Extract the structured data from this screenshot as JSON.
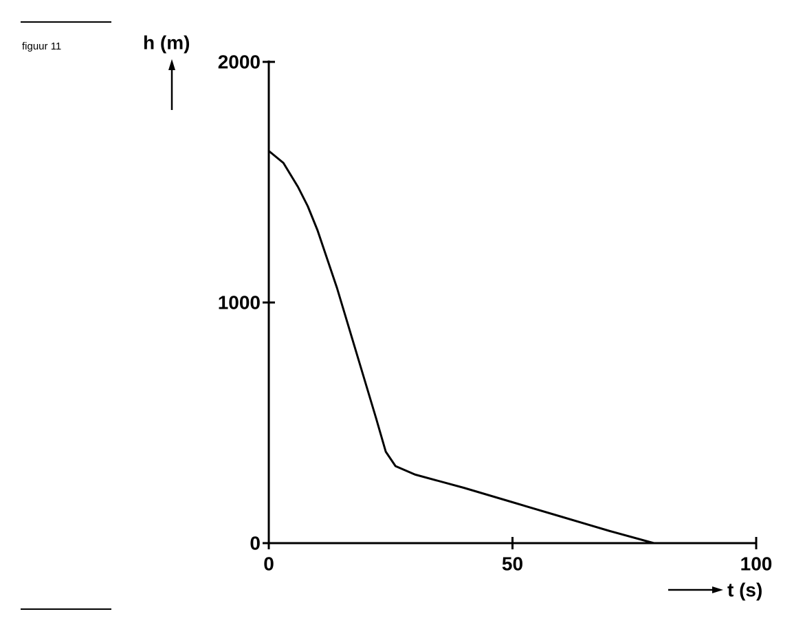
{
  "chart_data": {
    "type": "line",
    "title": "figuur 11",
    "y_label": "h (m)",
    "x_label": "t (s)",
    "x": [
      0,
      3,
      6,
      8,
      10,
      14,
      18,
      22,
      24,
      26,
      30,
      40,
      50,
      60,
      70,
      79
    ],
    "series": [
      {
        "name": "h",
        "color": "#000000",
        "values": [
          1630,
          1580,
          1480,
          1400,
          1300,
          1060,
          790,
          520,
          380,
          320,
          285,
          230,
          170,
          110,
          50,
          0
        ]
      }
    ],
    "xlim": [
      0,
      100
    ],
    "xticks": [
      0,
      50,
      100
    ],
    "ylim": [
      0,
      2000
    ],
    "yticks": [
      0,
      1000,
      2000
    ],
    "grid": false
  }
}
